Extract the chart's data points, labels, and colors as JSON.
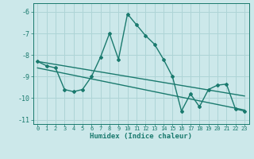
{
  "title": "",
  "xlabel": "Humidex (Indice chaleur)",
  "ylabel": "",
  "bg_color": "#cce8ea",
  "grid_color": "#aed4d6",
  "line_color": "#1a7a6e",
  "xlim": [
    -0.5,
    23.5
  ],
  "ylim": [
    -11.2,
    -5.6
  ],
  "xticks": [
    0,
    1,
    2,
    3,
    4,
    5,
    6,
    7,
    8,
    9,
    10,
    11,
    12,
    13,
    14,
    15,
    16,
    17,
    18,
    19,
    20,
    21,
    22,
    23
  ],
  "yticks": [
    -11,
    -10,
    -9,
    -8,
    -7,
    -6
  ],
  "main_series": {
    "x": [
      0,
      1,
      2,
      3,
      4,
      5,
      6,
      7,
      8,
      9,
      10,
      11,
      12,
      13,
      14,
      15,
      16,
      17,
      18,
      19,
      20,
      21,
      22,
      23
    ],
    "y": [
      -8.3,
      -8.5,
      -8.6,
      -9.6,
      -9.7,
      -9.6,
      -9.0,
      -8.1,
      -7.0,
      -8.2,
      -6.1,
      -6.6,
      -7.1,
      -7.5,
      -8.2,
      -9.0,
      -10.6,
      -9.8,
      -10.4,
      -9.6,
      -9.4,
      -9.35,
      -10.5,
      -10.6
    ]
  },
  "trend1": {
    "x": [
      0,
      23
    ],
    "y": [
      -8.3,
      -9.9
    ]
  },
  "trend2": {
    "x": [
      0,
      23
    ],
    "y": [
      -8.6,
      -10.55
    ]
  }
}
